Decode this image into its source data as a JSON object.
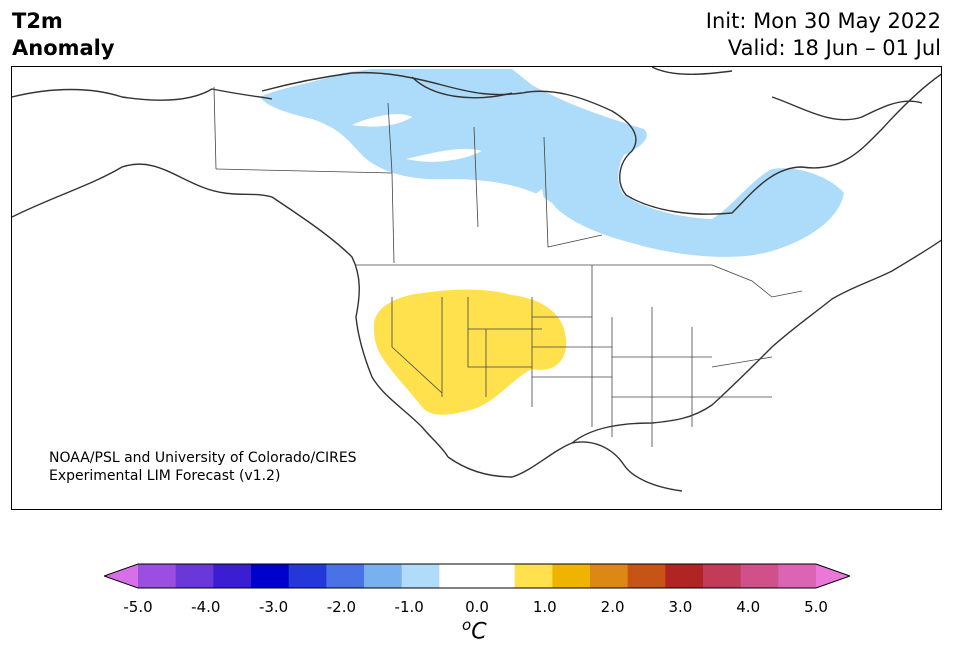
{
  "title": {
    "left_line1": "T2m",
    "left_line2": "Anomaly",
    "right_line1": "Init: Mon 30 May 2022",
    "right_line2": "Valid: 18 Jun – 01 Jul"
  },
  "credit": {
    "line1": "NOAA/PSL and University of Colorado/CIRES",
    "line2": "Experimental LIM Forecast (v1.2)"
  },
  "map": {
    "region": "North America",
    "anomaly_areas": [
      {
        "name": "cool-anomaly-canada",
        "level": "-1.0 to -0.5",
        "color": "#addcfa"
      },
      {
        "name": "warm-anomaly-southwest-us",
        "level": "0.5 to 1.0",
        "color": "#ffe14d"
      }
    ]
  },
  "colorbar": {
    "colors": [
      "#d76fe8",
      "#9a4fe0",
      "#6a37d9",
      "#3c1ed2",
      "#0000cd",
      "#2438d9",
      "#4a72e6",
      "#78b0f0",
      "#b0dcfa",
      "#ffffff",
      "#ffffff",
      "#ffe14d",
      "#f0b400",
      "#dc8716",
      "#c65416",
      "#b02424",
      "#c23c5a",
      "#d0508a",
      "#dc64b4",
      "#ea78d8"
    ],
    "tick_labels": [
      "-5.0",
      "-4.0",
      "-3.0",
      "-2.0",
      "-1.0",
      "0.0",
      "1.0",
      "2.0",
      "3.0",
      "4.0",
      "5.0"
    ],
    "unit": "o",
    "unit_symbol": "C"
  }
}
